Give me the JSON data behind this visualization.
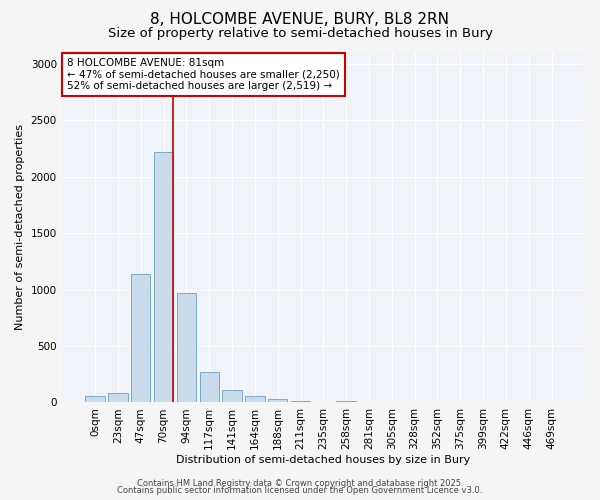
{
  "title": "8, HOLCOMBE AVENUE, BURY, BL8 2RN",
  "subtitle": "Size of property relative to semi-detached houses in Bury",
  "xlabel": "Distribution of semi-detached houses by size in Bury",
  "ylabel": "Number of semi-detached properties",
  "bar_color": "#c9daea",
  "bar_edge_color": "#7aaac8",
  "categories": [
    "0sqm",
    "23sqm",
    "47sqm",
    "70sqm",
    "94sqm",
    "117sqm",
    "141sqm",
    "164sqm",
    "188sqm",
    "211sqm",
    "235sqm",
    "258sqm",
    "281sqm",
    "305sqm",
    "328sqm",
    "352sqm",
    "375sqm",
    "399sqm",
    "422sqm",
    "446sqm",
    "469sqm"
  ],
  "values": [
    55,
    80,
    1140,
    2220,
    970,
    270,
    110,
    55,
    35,
    10,
    0,
    10,
    0,
    0,
    0,
    0,
    0,
    0,
    0,
    0,
    0
  ],
  "red_line_x": 3.42,
  "annotation_text": "8 HOLCOMBE AVENUE: 81sqm\n← 47% of semi-detached houses are smaller (2,250)\n52% of semi-detached houses are larger (2,519) →",
  "annotation_box_color": "#ffffff",
  "annotation_box_edge": "#cc0000",
  "red_line_color": "#cc0000",
  "ylim": [
    0,
    3100
  ],
  "yticks": [
    0,
    500,
    1000,
    1500,
    2000,
    2500,
    3000
  ],
  "footer1": "Contains HM Land Registry data © Crown copyright and database right 2025.",
  "footer2": "Contains public sector information licensed under the Open Government Licence v3.0.",
  "bg_color": "#f5f5f5",
  "plot_bg_color": "#f0f4f8",
  "grid_color": "#ffffff",
  "title_fontsize": 11,
  "subtitle_fontsize": 9.5,
  "axis_fontsize": 8,
  "tick_fontsize": 7.5,
  "annotation_fontsize": 7.5,
  "footer_fontsize": 6
}
